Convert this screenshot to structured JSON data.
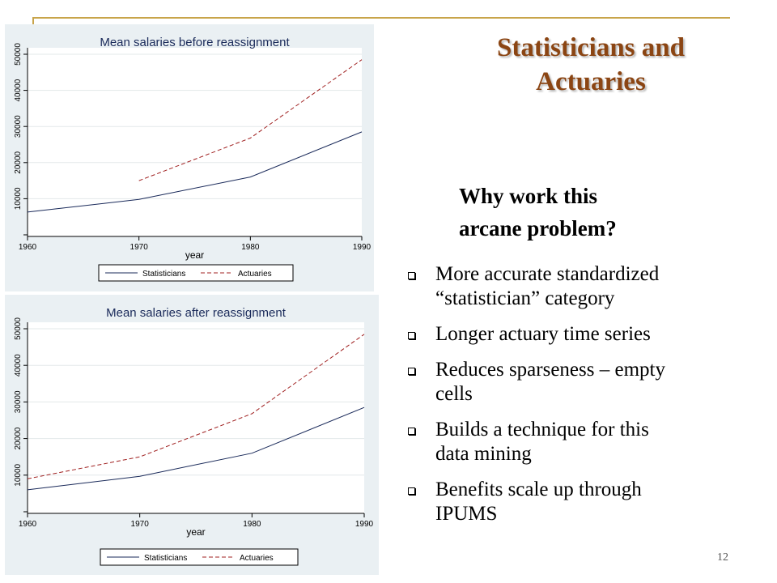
{
  "slide": {
    "title_line1": "Statisticians and",
    "title_line2": "Actuaries",
    "question_line1": "Why work this",
    "question_line2": "arcane problem?",
    "bullets": [
      {
        "line1": "More accurate standardized",
        "line2": "“statistician” category"
      },
      {
        "line1": "Longer actuary time series",
        "line2": ""
      },
      {
        "line1": "Reduces sparseness – empty",
        "line2": "cells"
      },
      {
        "line1": "Builds a technique for this",
        "line2": "data mining"
      },
      {
        "line1": "Benefits scale up through",
        "line2": "IPUMS"
      }
    ],
    "page_number": "12",
    "colors": {
      "title": "#8b4513",
      "rule": "#c8a44a",
      "statisticians": "#1a2a5a",
      "actuaries": "#a02020",
      "plot_bg": "#eaf0f3"
    }
  },
  "chart_data": [
    {
      "type": "line",
      "title": "Mean salaries before reassignment",
      "xlabel": "year",
      "ylabel": "",
      "x_ticks": [
        1960,
        1970,
        1980,
        1990
      ],
      "y_ticks": [
        10000,
        20000,
        30000,
        40000,
        50000
      ],
      "xlim": [
        1960,
        1990
      ],
      "ylim": [
        0,
        50000
      ],
      "legend_position": "bottom",
      "series": [
        {
          "name": "Statisticians",
          "style": "solid",
          "x": [
            1960,
            1970,
            1980,
            1990
          ],
          "y": [
            6300,
            9800,
            16000,
            28500
          ]
        },
        {
          "name": "Actuaries",
          "style": "dashed",
          "x": [
            1970,
            1980,
            1990
          ],
          "y": [
            15000,
            26800,
            48500
          ]
        }
      ]
    },
    {
      "type": "line",
      "title": "Mean salaries after reassignment",
      "xlabel": "year",
      "ylabel": "",
      "x_ticks": [
        1960,
        1970,
        1980,
        1990
      ],
      "y_ticks": [
        10000,
        20000,
        30000,
        40000,
        50000
      ],
      "xlim": [
        1960,
        1990
      ],
      "ylim": [
        0,
        50000
      ],
      "legend_position": "bottom",
      "series": [
        {
          "name": "Statisticians",
          "style": "solid",
          "x": [
            1960,
            1970,
            1980,
            1990
          ],
          "y": [
            6000,
            9700,
            16000,
            28500
          ]
        },
        {
          "name": "Actuaries",
          "style": "dashed",
          "x": [
            1960,
            1970,
            1980,
            1990
          ],
          "y": [
            9000,
            15000,
            26800,
            48500
          ]
        }
      ]
    }
  ]
}
